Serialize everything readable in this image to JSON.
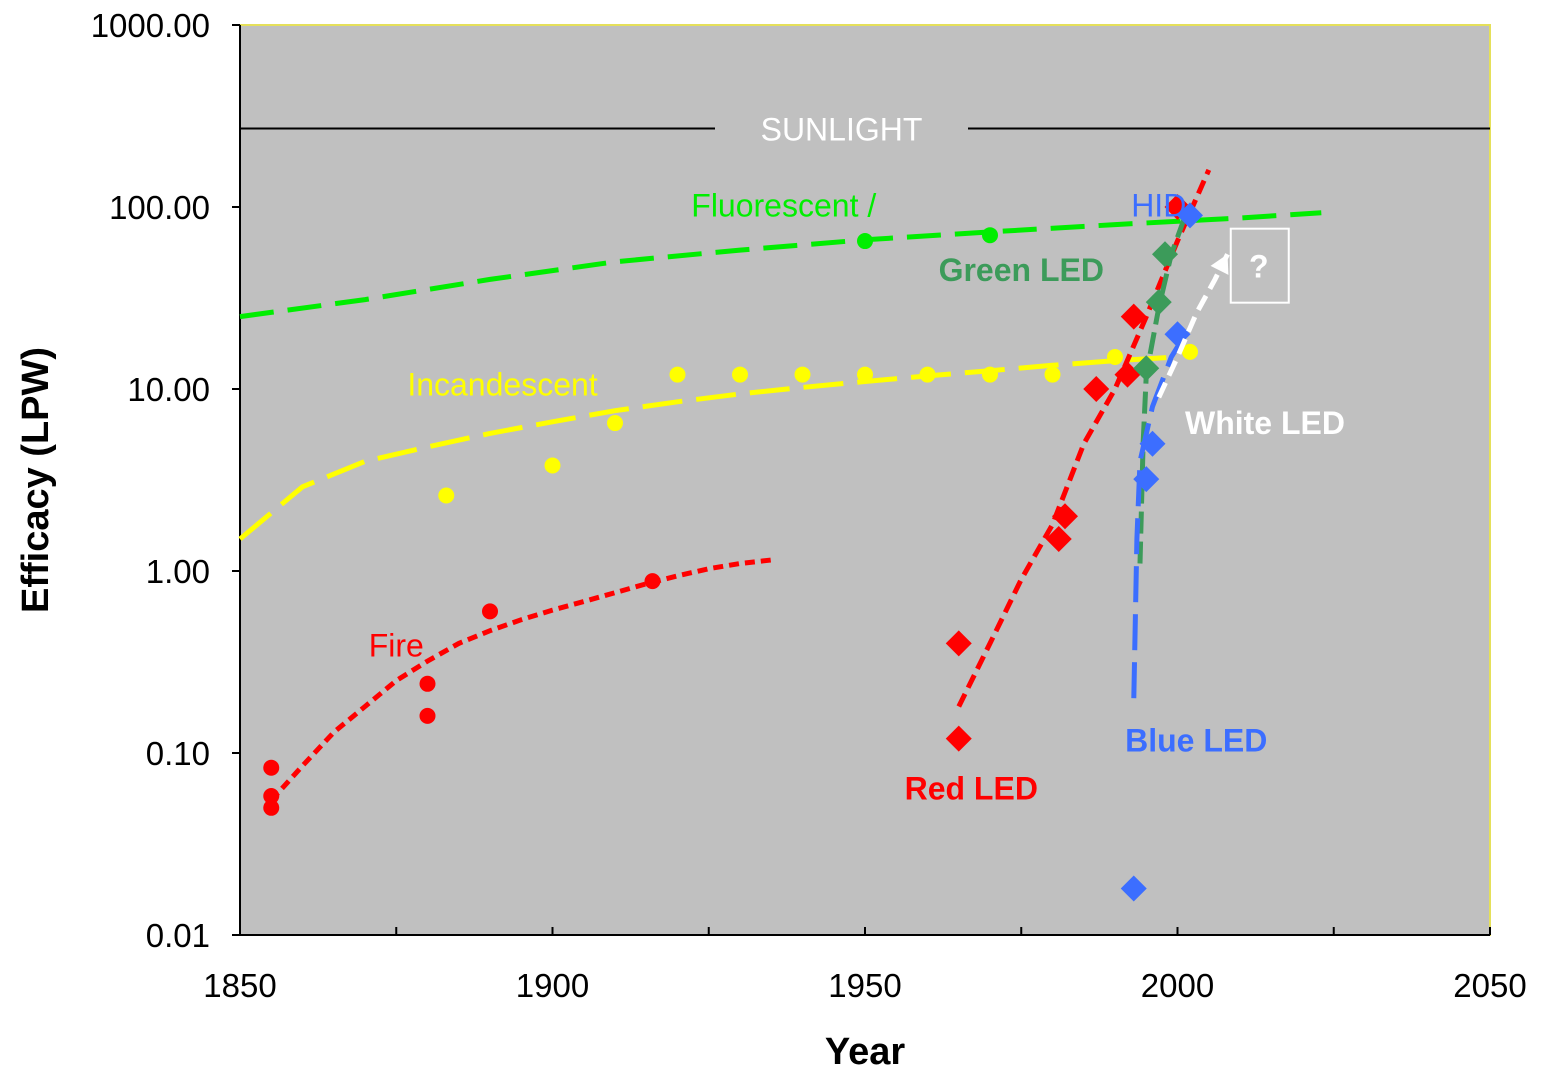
{
  "chart_data": {
    "type": "scatter",
    "xlabel": "Year",
    "ylabel": "Efficacy (LPW)",
    "xlim": [
      1850,
      2050
    ],
    "ylim": [
      0.01,
      1000
    ],
    "y_scale": "log",
    "x_ticks": [
      "1850",
      "1900",
      "1950",
      "2000",
      "2050"
    ],
    "x_tick_values": [
      1850,
      1900,
      1950,
      2000,
      2050
    ],
    "x_minor_ticks": [
      1875,
      1925,
      1975,
      2025
    ],
    "y_ticks": [
      "0.01",
      "0.10",
      "1.00",
      "10.00",
      "100.00",
      "1000.00"
    ],
    "y_tick_values": [
      0.01,
      0.1,
      1,
      10,
      100,
      1000
    ],
    "plot_background": "#c0c0c0",
    "grid": false,
    "reference_line": {
      "label": "SUNLIGHT",
      "y": 270,
      "color": "#000000",
      "label_color": "#ffffff"
    },
    "series": [
      {
        "name": "Fire",
        "color": "#ff0000",
        "marker": "circle",
        "points": [
          [
            1855,
            0.083
          ],
          [
            1855,
            0.058
          ],
          [
            1855,
            0.05
          ],
          [
            1880,
            0.24
          ],
          [
            1880,
            0.16
          ],
          [
            1890,
            0.6
          ],
          [
            1916,
            0.88
          ]
        ],
        "trend": [
          [
            1855,
            0.055
          ],
          [
            1860,
            0.085
          ],
          [
            1865,
            0.13
          ],
          [
            1870,
            0.18
          ],
          [
            1875,
            0.25
          ],
          [
            1880,
            0.32
          ],
          [
            1885,
            0.4
          ],
          [
            1890,
            0.47
          ],
          [
            1895,
            0.54
          ],
          [
            1900,
            0.61
          ],
          [
            1905,
            0.68
          ],
          [
            1910,
            0.76
          ],
          [
            1915,
            0.85
          ],
          [
            1920,
            0.94
          ],
          [
            1925,
            1.03
          ],
          [
            1930,
            1.1
          ],
          [
            1935,
            1.15
          ]
        ]
      },
      {
        "name": "Incandescent",
        "color": "#ffff00",
        "marker": "circle",
        "points": [
          [
            1883,
            2.6
          ],
          [
            1900,
            3.8
          ],
          [
            1910,
            6.5
          ],
          [
            1920,
            12
          ],
          [
            1930,
            12
          ],
          [
            1940,
            12
          ],
          [
            1950,
            12
          ],
          [
            1960,
            12
          ],
          [
            1970,
            12
          ],
          [
            1980,
            12
          ],
          [
            1990,
            15
          ],
          [
            2002,
            16
          ]
        ],
        "trend": [
          [
            1850,
            1.5
          ],
          [
            1860,
            2.9
          ],
          [
            1870,
            4.0
          ],
          [
            1880,
            4.8
          ],
          [
            1890,
            5.7
          ],
          [
            1900,
            6.6
          ],
          [
            1910,
            7.6
          ],
          [
            1920,
            8.5
          ],
          [
            1930,
            9.4
          ],
          [
            1940,
            10.2
          ],
          [
            1950,
            11.0
          ],
          [
            1960,
            11.8
          ],
          [
            1970,
            12.6
          ],
          [
            1980,
            13.5
          ],
          [
            1990,
            14.3
          ],
          [
            2000,
            15.0
          ]
        ]
      },
      {
        "name": "Fluorescent / HID",
        "color": "#00ee00",
        "marker": "circle",
        "points": [
          [
            1950,
            65
          ],
          [
            1970,
            70
          ]
        ],
        "trend": [
          [
            1850,
            25
          ],
          [
            1870,
            31
          ],
          [
            1890,
            40
          ],
          [
            1910,
            50
          ],
          [
            1930,
            58
          ],
          [
            1950,
            66
          ],
          [
            1970,
            73
          ],
          [
            1990,
            80
          ],
          [
            2010,
            87
          ],
          [
            2023,
            93
          ]
        ]
      },
      {
        "name": "Red LED",
        "color": "#ff0000",
        "marker": "diamond",
        "points": [
          [
            1965,
            0.12
          ],
          [
            1965,
            0.4
          ],
          [
            1981,
            1.5
          ],
          [
            1982,
            2.0
          ],
          [
            1987,
            10
          ],
          [
            1992,
            12
          ],
          [
            1993,
            25
          ],
          [
            2000,
            100
          ]
        ],
        "trend": [
          [
            1965,
            0.18
          ],
          [
            1970,
            0.4
          ],
          [
            1975,
            0.9
          ],
          [
            1980,
            1.8
          ],
          [
            1985,
            5
          ],
          [
            1990,
            10
          ],
          [
            1995,
            25
          ],
          [
            2000,
            65
          ],
          [
            2005,
            160
          ]
        ]
      },
      {
        "name": "Green LED",
        "color": "#3c9b5a",
        "marker": "diamond",
        "points": [
          [
            1995,
            13
          ],
          [
            1997,
            30
          ],
          [
            1998,
            55
          ]
        ],
        "trend": [
          [
            1994,
            1.1
          ],
          [
            1994.5,
            5
          ],
          [
            1995,
            12
          ],
          [
            1997,
            28
          ],
          [
            1999,
            55
          ],
          [
            2001,
            85
          ]
        ]
      },
      {
        "name": "Blue LED",
        "color": "#3c6eff",
        "marker": "diamond",
        "points": [
          [
            1993,
            0.018
          ],
          [
            1995,
            3.2
          ],
          [
            1996,
            5
          ],
          [
            2000,
            20
          ],
          [
            2002,
            90
          ]
        ],
        "trend": [
          [
            1993,
            0.2
          ],
          [
            1993.5,
            1.5
          ],
          [
            1994,
            4
          ],
          [
            1996,
            8
          ],
          [
            1999,
            15
          ],
          [
            2002,
            22
          ]
        ]
      },
      {
        "name": "White LED",
        "color": "#ffffff",
        "marker": "none",
        "points": [],
        "trend": [
          [
            1997,
            9
          ],
          [
            2000,
            15
          ],
          [
            2003,
            26
          ],
          [
            2006,
            40
          ],
          [
            2008,
            55
          ]
        ]
      }
    ],
    "annotations": [
      {
        "text": "Fire",
        "color": "#ff0000",
        "x": 1875,
        "y": 0.39,
        "bold": false
      },
      {
        "text": "Incandescent",
        "color": "#ffff00",
        "x": 1892,
        "y": 10.6,
        "bold": false
      },
      {
        "text": "Fluorescent /",
        "color": "#00ee00",
        "x": 1937,
        "y": 102,
        "bold": false
      },
      {
        "text": "HID",
        "color": "#3c6eff",
        "x": 1997,
        "y": 102,
        "bold": false
      },
      {
        "text": "Green LED",
        "color": "#3c9b5a",
        "x": 1975,
        "y": 45,
        "bold": true
      },
      {
        "text": "White LED",
        "color": "#ffffff",
        "x": 2014,
        "y": 6.5,
        "bold": true
      },
      {
        "text": "Blue LED",
        "color": "#3c6eff",
        "x": 2003,
        "y": 0.117,
        "bold": true
      },
      {
        "text": "Red LED",
        "color": "#ff0000",
        "x": 1967,
        "y": 0.064,
        "bold": true
      },
      {
        "text": "?",
        "color": "#ffffff",
        "x": 2013,
        "y": 47,
        "bold": true,
        "boxed": true
      }
    ]
  }
}
